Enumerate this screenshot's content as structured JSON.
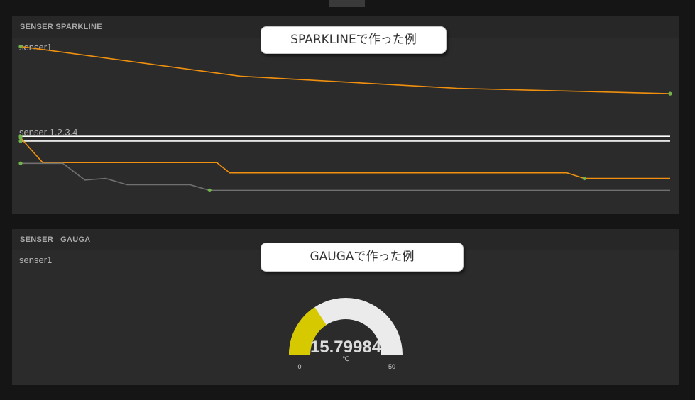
{
  "sparkline_panel": {
    "title": "SENSER SPARKLINE",
    "callout": "SPARKLINEで作った例",
    "rows": [
      {
        "label": "senser1"
      },
      {
        "label": "senser 1.2.3.4"
      }
    ]
  },
  "gauge_panel": {
    "title": "SENSER   GAUGA",
    "callout": "GAUGAで作った例",
    "label": "senser1"
  },
  "chart_data": [
    {
      "type": "line",
      "title": "senser1",
      "series": [
        {
          "values": [
            0.92,
            0.48,
            0.3,
            0.22
          ],
          "color": "#f0900e"
        }
      ]
    },
    {
      "type": "line",
      "title": "senser 1.2.3.4",
      "series": [
        {
          "values": [
            0.9,
            0.9
          ],
          "color": "#ffffff"
        },
        {
          "values": [
            0.84,
            0.84
          ],
          "color": "#ffffff"
        },
        {
          "values": [
            0.88,
            0.57,
            0.57,
            0.57,
            0.44,
            0.44,
            0.44,
            0.44,
            0.37,
            0.37,
            0.37
          ],
          "color": "#f0900e"
        },
        {
          "values": [
            0.56,
            0.56,
            0.35,
            0.37,
            0.29,
            0.29,
            0.22,
            0.22,
            0.22,
            0.22
          ],
          "color": "#707070"
        }
      ]
    },
    {
      "type": "gauge",
      "value": "15.79984",
      "value_num": 15.79984,
      "min": 0,
      "max": 50,
      "min_label": "0",
      "max_label": "50",
      "unit": "℃",
      "fill_color": "#d7c900",
      "track_color": "#ebebeb"
    }
  ]
}
